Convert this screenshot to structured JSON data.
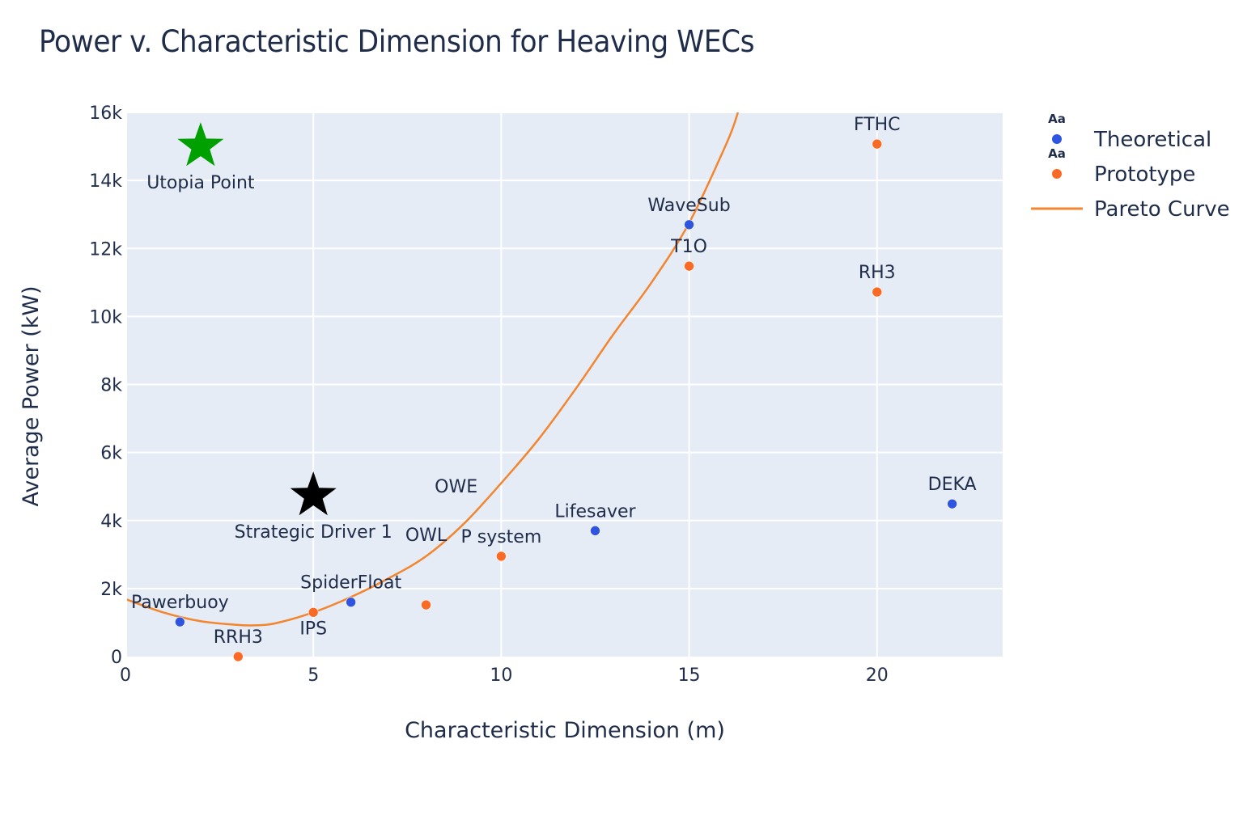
{
  "chart_data": {
    "type": "scatter",
    "title": "Power v. Characteristic Dimension for Heaving WECs",
    "xlabel": "Characteristic Dimension (m)",
    "ylabel": "Average Power (kW)",
    "xlim": [
      0,
      23.3
    ],
    "ylim": [
      0,
      16000
    ],
    "grid": true,
    "x_ticks": [
      0,
      5,
      10,
      15,
      20
    ],
    "x_tick_labels": [
      "0",
      "5",
      "10",
      "15",
      "20"
    ],
    "y_ticks": [
      0,
      2000,
      4000,
      6000,
      8000,
      10000,
      12000,
      14000,
      16000
    ],
    "y_tick_labels": [
      "0",
      "2k",
      "4k",
      "6k",
      "8k",
      "10k",
      "12k",
      "14k",
      "16k"
    ],
    "legend_position": "top-right",
    "legend": [
      {
        "name": "Theoretical",
        "symbol": "circle",
        "color": "#2f55e0",
        "glyph": "Aa"
      },
      {
        "name": "Prototype",
        "symbol": "circle",
        "color": "#fb6a24",
        "glyph": "Aa"
      },
      {
        "name": "Pareto Curve",
        "symbol": "line",
        "color": "#f4852f"
      }
    ],
    "series": [
      {
        "name": "Theoretical",
        "color": "#2f55e0",
        "points": [
          {
            "label": "Pawerbuoy",
            "x": 1.45,
            "y": 1020
          },
          {
            "label": "SpiderFloat",
            "x": 6,
            "y": 1600
          },
          {
            "label": "Lifesaver",
            "x": 12.5,
            "y": 3700
          },
          {
            "label": "WaveSub",
            "x": 15,
            "y": 12700
          },
          {
            "label": "DEKA",
            "x": 22,
            "y": 4490
          }
        ]
      },
      {
        "name": "Prototype",
        "color": "#fb6a24",
        "points": [
          {
            "label": "RRH3",
            "x": 3,
            "y": 0,
            "label_pos": "top"
          },
          {
            "label": "IPS",
            "x": 5,
            "y": 1300
          },
          {
            "label": "OWL",
            "x": 8,
            "y": 1520
          },
          {
            "label": "OWE",
            "x": 10,
            "y": 2950,
            "label_dx": -1.2
          },
          {
            "label": "P system",
            "x": 10,
            "y": 2950
          },
          {
            "label": "T1O",
            "x": 15,
            "y": 11480
          },
          {
            "label": "RH3",
            "x": 20,
            "y": 10720
          },
          {
            "label": "FTHC",
            "x": 20,
            "y": 15070
          }
        ]
      },
      {
        "name": "Pareto Curve",
        "color": "#f4852f",
        "type": "line",
        "x": [
          0,
          1,
          2,
          3,
          3.5,
          4,
          5,
          6,
          7,
          8,
          9,
          10,
          11,
          12,
          13,
          14,
          15,
          16,
          16.3
        ],
        "y": [
          1690,
          1300,
          1040,
          930,
          920,
          980,
          1300,
          1750,
          2300,
          2950,
          3900,
          5100,
          6400,
          7900,
          9500,
          11000,
          12750,
          15100,
          16000
        ]
      }
    ],
    "annotations": [
      {
        "label": "Utopia Point",
        "x": 2,
        "y": 15000,
        "symbol": "star",
        "color": "#00a000"
      },
      {
        "label": "Strategic Driver 1",
        "x": 5,
        "y": 4730,
        "symbol": "star",
        "color": "#000000"
      }
    ]
  }
}
